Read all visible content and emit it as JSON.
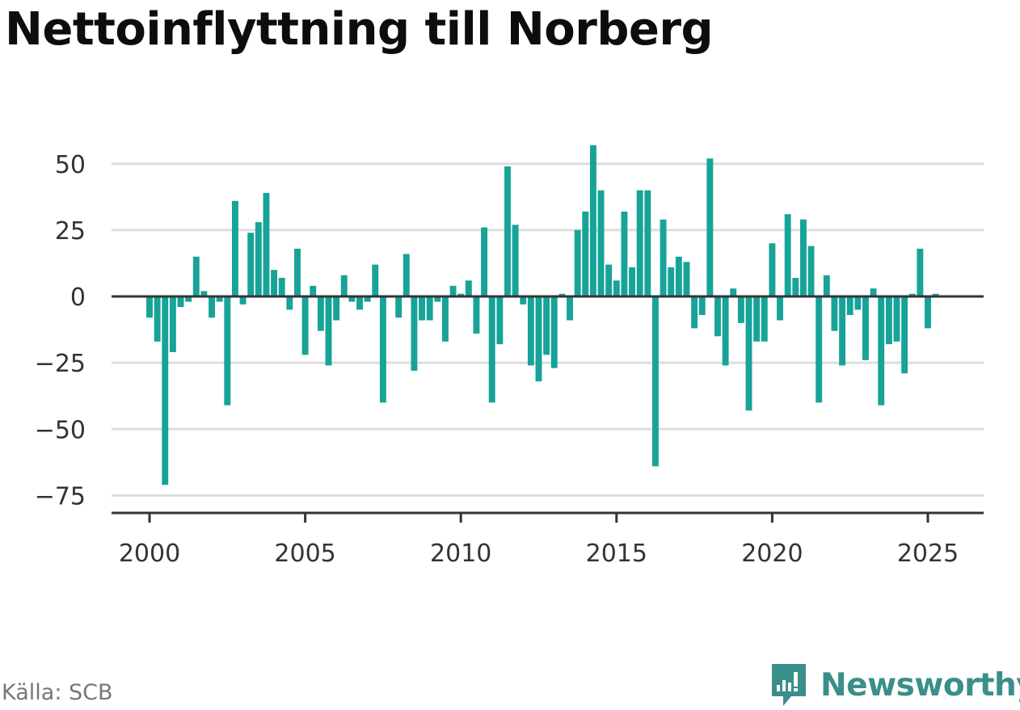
{
  "title": "Nettoinflyttning till Norberg",
  "source": "Källa: SCB",
  "brand": "Newsworthy",
  "colors": {
    "bar": "#17a398",
    "grid": "#dddddd",
    "axis": "#333333",
    "brand": "#3a8f8a"
  },
  "chart_data": {
    "type": "bar",
    "title": "Nettoinflyttning till Norberg",
    "xlabel": "",
    "ylabel": "",
    "x_ticks": [
      2000,
      2005,
      2010,
      2015,
      2020,
      2025
    ],
    "y_ticks": [
      50,
      25,
      0,
      -25,
      -50,
      -75
    ],
    "y_tick_labels": [
      "50",
      "25",
      "0",
      "−25",
      "−50",
      "−75"
    ],
    "ylim": [
      -82,
      62
    ],
    "xlim": [
      1998.68,
      2026.78
    ],
    "grid": true,
    "frequency": "quarterly",
    "start": 2000.0,
    "values": [
      -8,
      -17,
      -71,
      -21,
      -4,
      -2,
      15,
      2,
      -8,
      -2,
      -41,
      36,
      -3,
      24,
      28,
      39,
      10,
      7,
      -5,
      18,
      -22,
      4,
      -13,
      -26,
      -9,
      8,
      -2,
      -5,
      -2,
      12,
      -40,
      0,
      -8,
      16,
      -28,
      -9,
      -9,
      -2,
      -17,
      4,
      1,
      6,
      -14,
      26,
      -40,
      -18,
      49,
      27,
      -3,
      -26,
      -32,
      -22,
      -27,
      1,
      -9,
      25,
      32,
      57,
      40,
      12,
      6,
      32,
      11,
      40,
      40,
      -64,
      29,
      11,
      15,
      13,
      -12,
      -7,
      52,
      -15,
      -26,
      3,
      -10,
      -43,
      -17,
      -17,
      20,
      -9,
      31,
      7,
      29,
      19,
      -40,
      8,
      -13,
      -26,
      -7,
      -5,
      -24,
      3,
      -41,
      -18,
      -17,
      -29,
      1,
      18,
      -12,
      1
    ]
  }
}
